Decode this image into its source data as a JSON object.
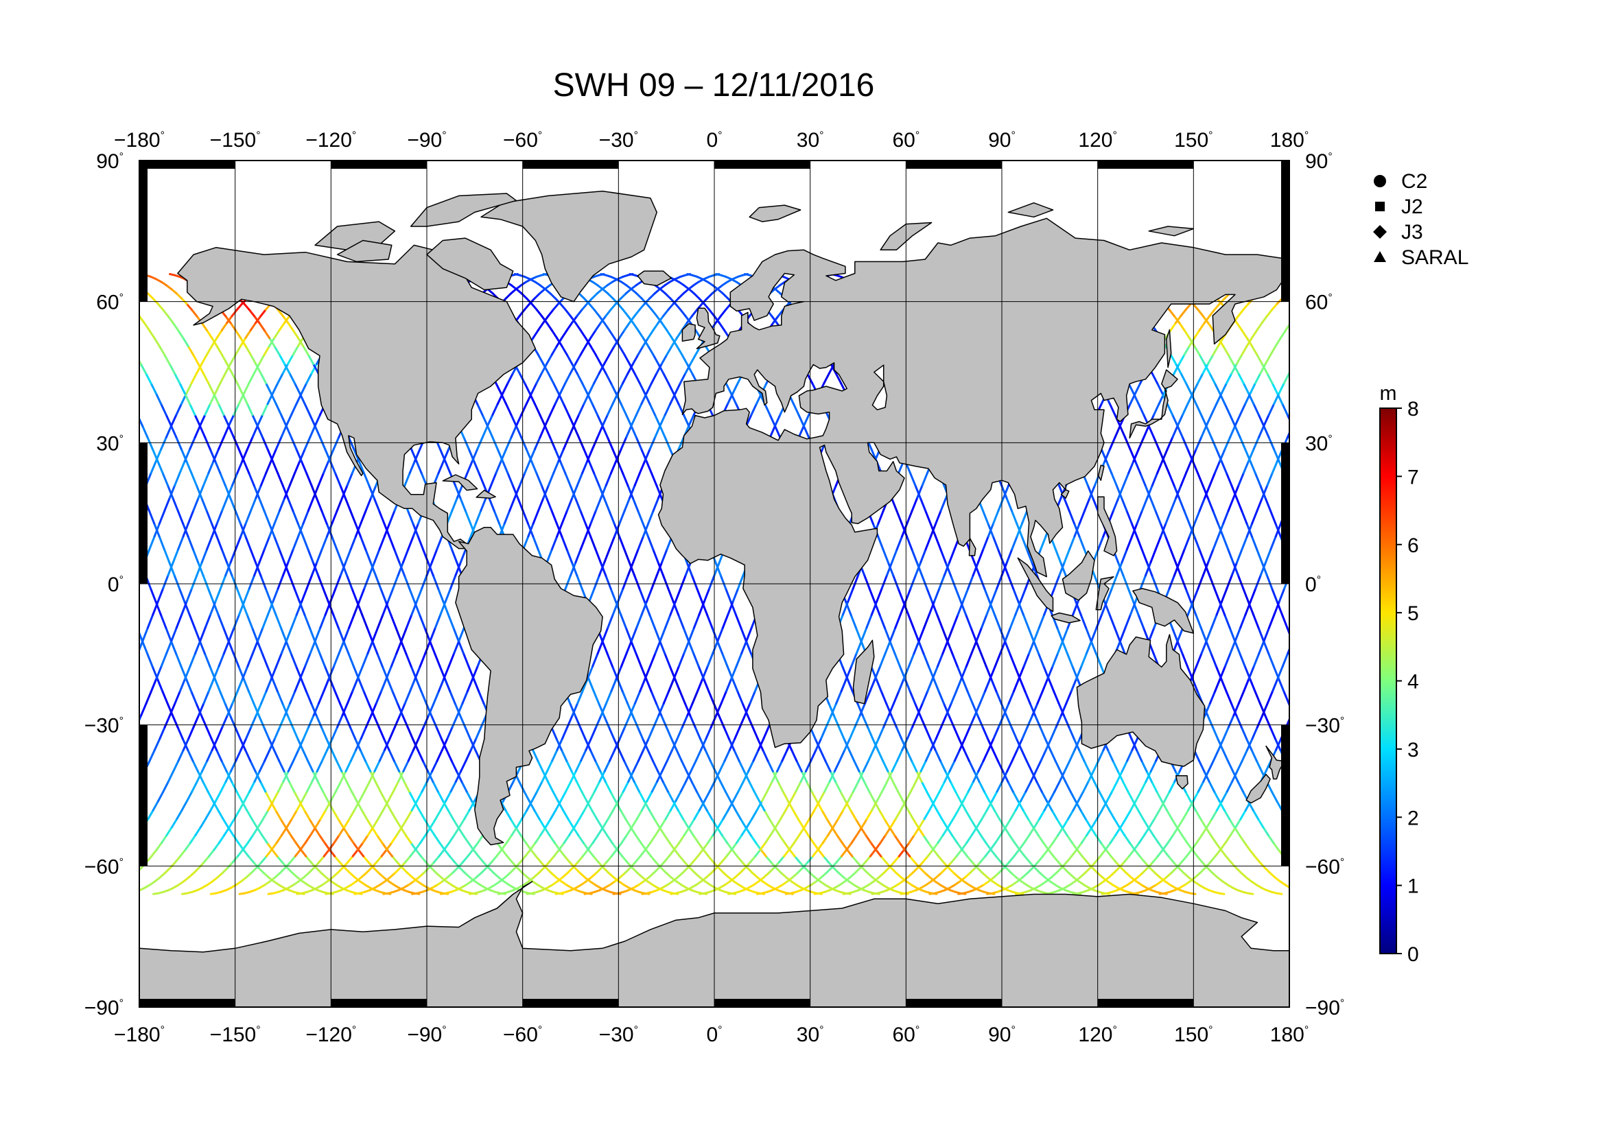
{
  "chart_data": {
    "type": "map",
    "title": "SWH 09 – 12/11/2016",
    "projection": "equirectangular",
    "lon_ticks": [
      "−180",
      "−150",
      "−120",
      "−90",
      "−60",
      "−30",
      "0",
      "30",
      "60",
      "90",
      "120",
      "150",
      "180"
    ],
    "lat_ticks": [
      "90",
      "60",
      "30",
      "0",
      "−30",
      "−60",
      "−90"
    ],
    "lon_range": [
      -180,
      180
    ],
    "lat_range": [
      -90,
      90
    ],
    "grid": true,
    "legend": {
      "placement": "top-right",
      "entries": [
        {
          "label": "C2",
          "marker": "circle"
        },
        {
          "label": "J2",
          "marker": "square"
        },
        {
          "label": "J3",
          "marker": "diamond"
        },
        {
          "label": "SARAL",
          "marker": "triangle"
        }
      ]
    },
    "colorbar": {
      "unit": "m",
      "min": 0,
      "max": 8,
      "ticks": [
        "0",
        "1",
        "2",
        "3",
        "4",
        "5",
        "6",
        "7",
        "8"
      ],
      "colormap": "jet"
    },
    "colors": {
      "land": "#c0c0c0",
      "ocean": "#ffffff",
      "grid": "#000000"
    }
  }
}
